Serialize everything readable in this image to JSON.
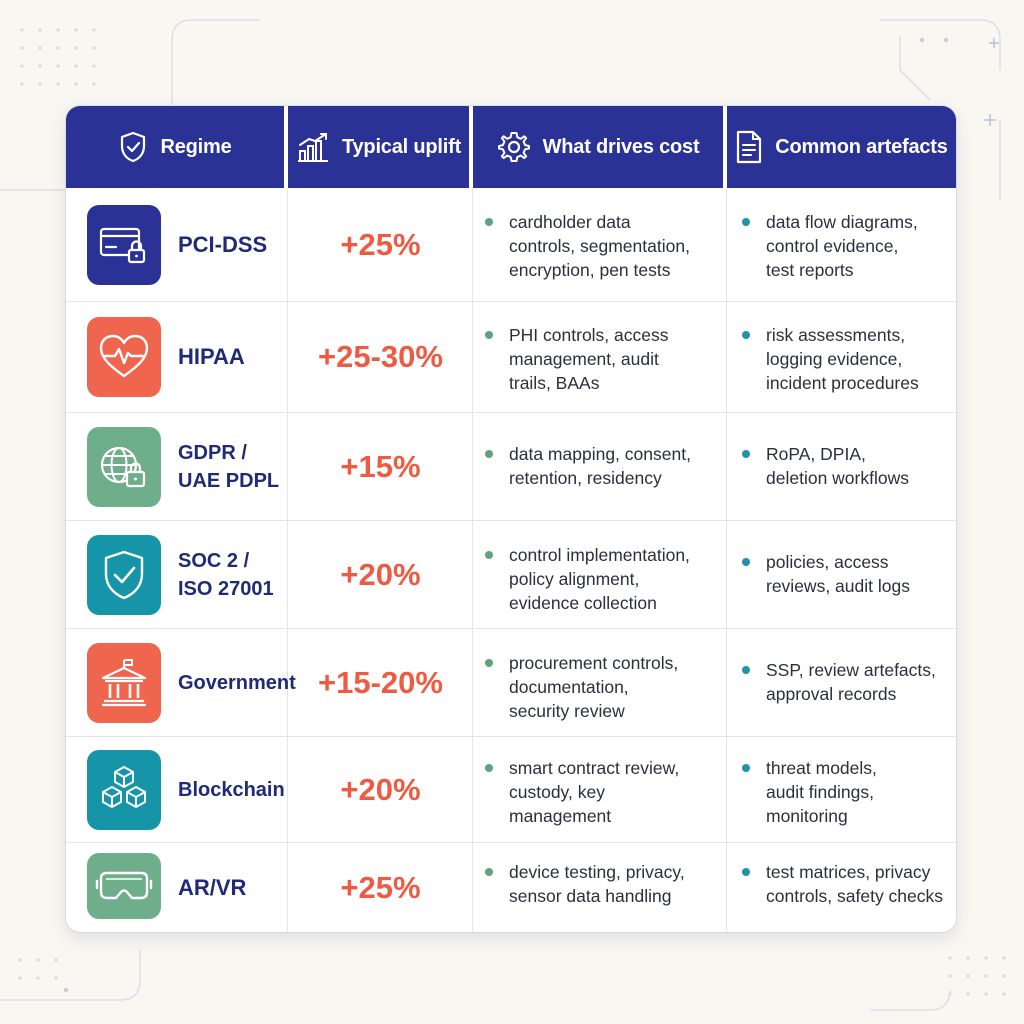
{
  "columns": {
    "regime": "Regime",
    "uplift": "Typical uplift",
    "drivers": "What drives cost",
    "artefacts": "Common artefacts"
  },
  "colors": {
    "header": "#2b3296",
    "uplift_text": "#ef5a42",
    "name_text": "#1f2a78",
    "driver_bullet": "#5ea37d",
    "artefact_bullet": "#1f93a8"
  },
  "rows": [
    {
      "icon": "credit-card-lock-icon",
      "tile_color": "#2b3296",
      "name": "PCI-DSS",
      "uplift": "+25%",
      "drivers": "cardholder data\ncontrols, segmentation,\nencryption, pen tests",
      "artefacts": "data flow diagrams,\ncontrol evidence,\ntest reports"
    },
    {
      "icon": "heart-pulse-icon",
      "tile_color": "#f0654e",
      "name": "HIPAA",
      "uplift": "+25-30%",
      "drivers": "PHI controls, access\nmanagement, audit\ntrails, BAAs",
      "artefacts": "risk assessments,\nlogging evidence,\nincident procedures"
    },
    {
      "icon": "globe-lock-icon",
      "tile_color": "#6fae8a",
      "name": "GDPR /\nUAE PDPL",
      "uplift": "+15%",
      "drivers": "data mapping, consent,\nretention, residency",
      "artefacts": "RoPA, DPIA,\ndeletion workflows"
    },
    {
      "icon": "shield-check-icon",
      "tile_color": "#1795a8",
      "name": "SOC 2 /\nISO 27001",
      "uplift": "+20%",
      "drivers": "control implementation,\npolicy alignment,\nevidence collection",
      "artefacts": "policies, access\nreviews, audit logs"
    },
    {
      "icon": "government-building-icon",
      "tile_color": "#f0654e",
      "name": "Government",
      "uplift": "+15-20%",
      "drivers": "procurement controls,\ndocumentation,\nsecurity review",
      "artefacts": "SSP, review artefacts,\napproval records"
    },
    {
      "icon": "blockchain-cubes-icon",
      "tile_color": "#1795a8",
      "name": "Blockchain",
      "uplift": "+20%",
      "drivers": "smart contract review,\ncustody, key\nmanagement",
      "artefacts": "threat models,\naudit findings,\nmonitoring"
    },
    {
      "icon": "vr-headset-icon",
      "tile_color": "#6fae8a",
      "name": "AR/VR",
      "uplift": "+25%",
      "drivers": "device testing, privacy,\nsensor data handling",
      "artefacts": "test matrices, privacy\ncontrols, safety checks"
    }
  ]
}
